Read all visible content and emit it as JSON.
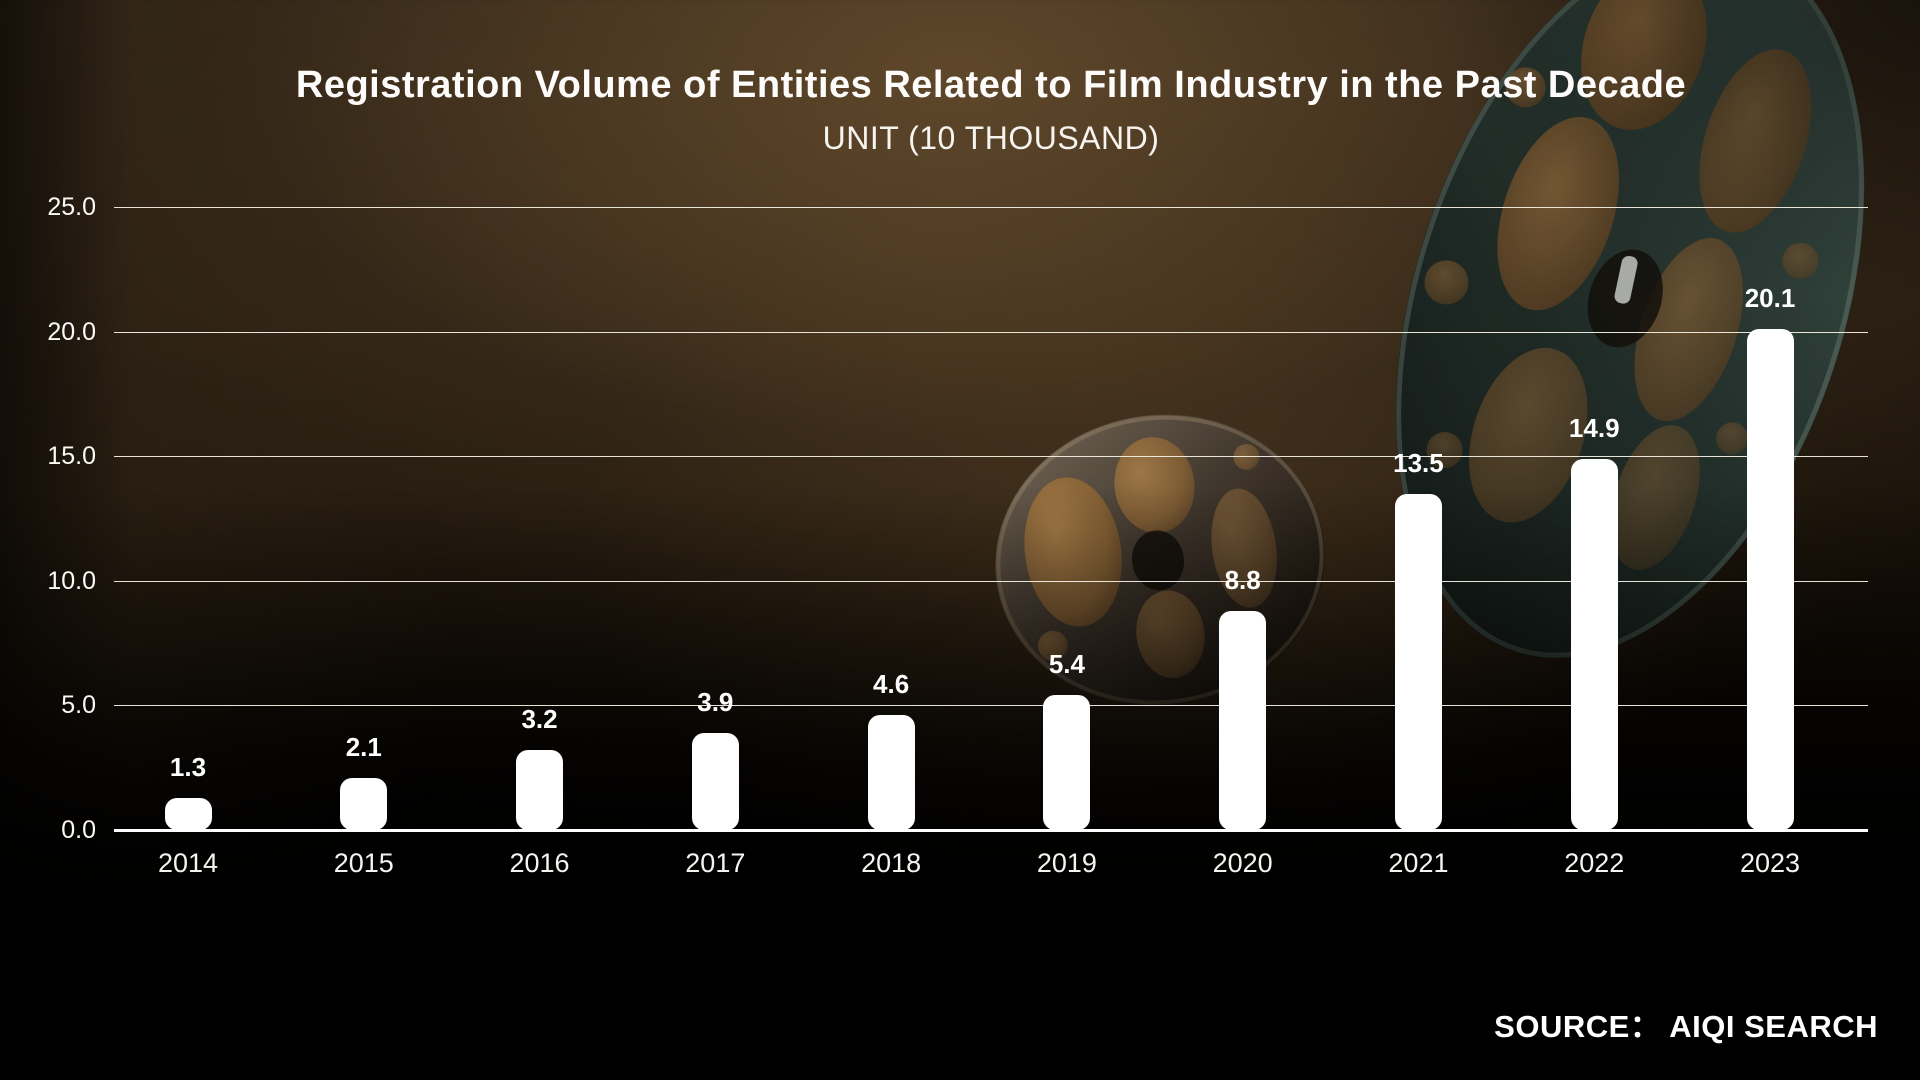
{
  "chart_data": {
    "type": "bar",
    "title": "Registration Volume of Entities Related to Film Industry in the Past Decade",
    "subtitle": "UNIT (10 THOUSAND)",
    "categories": [
      "2014",
      "2015",
      "2016",
      "2017",
      "2018",
      "2019",
      "2020",
      "2021",
      "2022",
      "2023"
    ],
    "values": [
      1.3,
      2.1,
      3.2,
      3.9,
      4.6,
      5.4,
      8.8,
      13.5,
      14.9,
      20.1
    ],
    "value_labels": [
      "1.3",
      "2.1",
      "3.2",
      "3.9",
      "4.6",
      "5.4",
      "8.8",
      "13.5",
      "14.9",
      "20.1"
    ],
    "y_axis": {
      "min": 0,
      "max": 25,
      "tick_interval": 5,
      "tick_labels": [
        "0.0",
        "5.0",
        "10.0",
        "15.0",
        "20.0",
        "25.0"
      ]
    },
    "grid": true,
    "legend": false,
    "bar_color": "#ffffff",
    "gridline_color": "#f3eee2",
    "background_top_color": "#3f3020",
    "background_bottom_color": "#000000",
    "source": "SOURCE： AIQI SEARCH"
  },
  "decor": {
    "large_reel": "film-reel",
    "small_reel": "film-reel"
  }
}
